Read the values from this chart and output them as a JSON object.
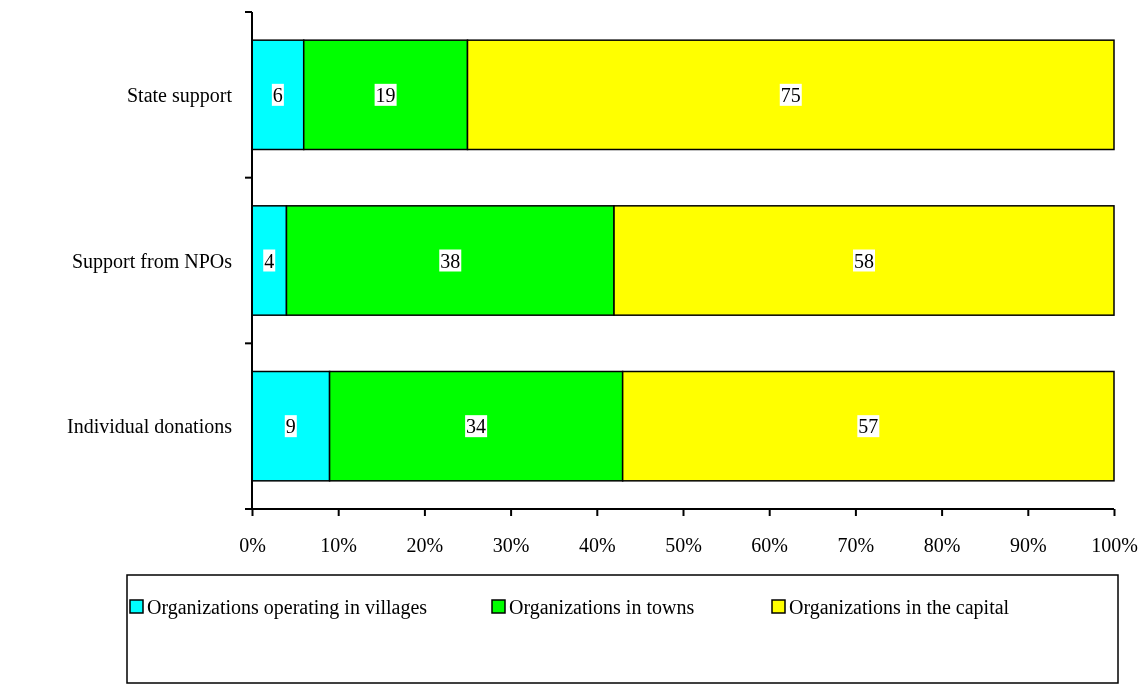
{
  "chart_data": {
    "type": "bar",
    "orientation": "horizontal",
    "stacked": true,
    "data_labels": true,
    "legend": "bottom",
    "categories": [
      "State support",
      "Support from NPOs",
      "Individual donations"
    ],
    "series": [
      {
        "name": "Organizations operating in villages",
        "color": "#00ffff",
        "values": [
          6,
          4,
          9
        ]
      },
      {
        "name": "Organizations in towns",
        "color": "#00ff00",
        "values": [
          19,
          38,
          34
        ]
      },
      {
        "name": "Organizations in the capital",
        "color": "#ffff00",
        "values": [
          75,
          58,
          57
        ]
      }
    ],
    "xlim": [
      0,
      100
    ],
    "xticks": [
      {
        "value": 0,
        "label": "0%"
      },
      {
        "value": 10,
        "label": "10%"
      },
      {
        "value": 20,
        "label": "20%"
      },
      {
        "value": 30,
        "label": "30%"
      },
      {
        "value": 40,
        "label": "40%"
      },
      {
        "value": 50,
        "label": "50%"
      },
      {
        "value": 60,
        "label": "60%"
      },
      {
        "value": 70,
        "label": "70%"
      },
      {
        "value": 80,
        "label": "80%"
      },
      {
        "value": 90,
        "label": "90%"
      },
      {
        "value": 100,
        "label": "100%"
      }
    ]
  }
}
